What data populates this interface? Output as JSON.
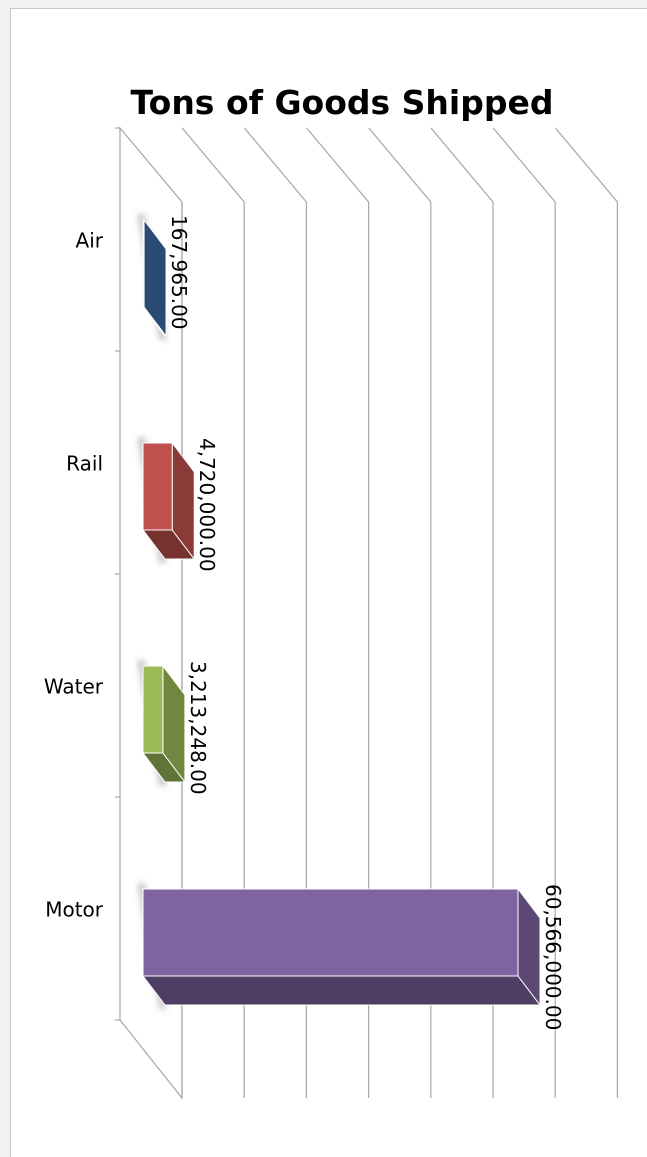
{
  "chart_data": {
    "type": "bar",
    "orientation": "horizontal",
    "style": "3d-clustered-bar",
    "title": "Tons of Goods Shipped",
    "xlabel": "",
    "ylabel": "",
    "categories": [
      "Air",
      "Rail",
      "Water",
      "Motor"
    ],
    "series": [
      {
        "values": [
          167965,
          4720000,
          3213248,
          60566000
        ],
        "data_labels": [
          "167,965.00",
          "4,720,000.00",
          "3,213,248.00",
          "60,566,000.00"
        ]
      }
    ],
    "bar_colors": [
      "#3c679f",
      "#c0504d",
      "#9bbb59",
      "#8064a2"
    ],
    "gridlines": true,
    "legend": "none",
    "value_axis_labels_visible": false
  },
  "colors": {
    "page_background": "#f2f2f2",
    "chart_background": "#ffffff",
    "gridline": "#a6a6a6"
  }
}
